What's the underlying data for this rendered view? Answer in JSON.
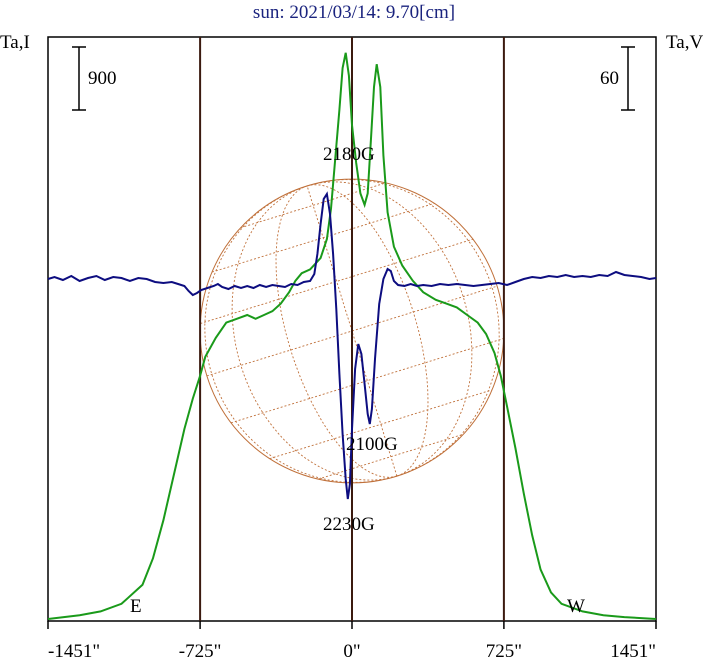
{
  "chart_data": {
    "type": "line",
    "title": "sun: 2021/03/14: 9.70[cm]",
    "left_axis_label": "Ta,I",
    "right_axis_label": "Ta,V",
    "left_scale_bar_value": "900",
    "right_scale_bar_value": "60",
    "x_tick_labels": [
      "-1451\"",
      "-725\"",
      "0\"",
      "725\"",
      "1451\""
    ],
    "x_ticks": [
      -1451,
      -725,
      0,
      725,
      1451
    ],
    "xlim": [
      -1451,
      1451
    ],
    "limb_positions": [
      -725,
      725
    ],
    "limb_labels": {
      "east": "E",
      "west": "W"
    },
    "annotations": [
      {
        "text": "2180G",
        "x": -15,
        "y_frac": 0.85
      },
      {
        "text": "2100G",
        "x": 95,
        "y_frac": 0.3
      },
      {
        "text": "2230G",
        "x": -15,
        "y_frac": 0.15
      }
    ],
    "colors": {
      "intensity": "#1a9a1a",
      "polarization": "#0d0d80",
      "limb_lines": "#3b1a0f",
      "disk_grid": "#c0713b",
      "title": "#1a237e"
    },
    "series": [
      {
        "id": "I",
        "axis": "left",
        "points": [
          [
            -1451,
            0.0
          ],
          [
            -1300,
            0.01
          ],
          [
            -1200,
            0.02
          ],
          [
            -1100,
            0.04
          ],
          [
            -1000,
            0.09
          ],
          [
            -950,
            0.16
          ],
          [
            -900,
            0.26
          ],
          [
            -850,
            0.38
          ],
          [
            -800,
            0.5
          ],
          [
            -760,
            0.58
          ],
          [
            -725,
            0.64
          ],
          [
            -700,
            0.69
          ],
          [
            -650,
            0.74
          ],
          [
            -600,
            0.78
          ],
          [
            -550,
            0.79
          ],
          [
            -500,
            0.8
          ],
          [
            -460,
            0.79
          ],
          [
            -420,
            0.8
          ],
          [
            -380,
            0.81
          ],
          [
            -340,
            0.83
          ],
          [
            -300,
            0.86
          ],
          [
            -270,
            0.89
          ],
          [
            -240,
            0.91
          ],
          [
            -200,
            0.92
          ],
          [
            -150,
            0.95
          ],
          [
            -120,
            1.0
          ],
          [
            -100,
            1.08
          ],
          [
            -80,
            1.21
          ],
          [
            -60,
            1.34
          ],
          [
            -45,
            1.45
          ],
          [
            -30,
            1.49
          ],
          [
            -15,
            1.43
          ],
          [
            0,
            1.3
          ],
          [
            20,
            1.2
          ],
          [
            40,
            1.12
          ],
          [
            60,
            1.09
          ],
          [
            75,
            1.12
          ],
          [
            90,
            1.26
          ],
          [
            105,
            1.4
          ],
          [
            118,
            1.46
          ],
          [
            135,
            1.4
          ],
          [
            150,
            1.22
          ],
          [
            170,
            1.07
          ],
          [
            200,
            0.98
          ],
          [
            240,
            0.93
          ],
          [
            290,
            0.89
          ],
          [
            340,
            0.86
          ],
          [
            400,
            0.84
          ],
          [
            450,
            0.83
          ],
          [
            500,
            0.82
          ],
          [
            550,
            0.8
          ],
          [
            600,
            0.78
          ],
          [
            640,
            0.75
          ],
          [
            680,
            0.7
          ],
          [
            710,
            0.64
          ],
          [
            740,
            0.56
          ],
          [
            780,
            0.45
          ],
          [
            820,
            0.33
          ],
          [
            860,
            0.22
          ],
          [
            900,
            0.13
          ],
          [
            950,
            0.07
          ],
          [
            1000,
            0.04
          ],
          [
            1100,
            0.02
          ],
          [
            1200,
            0.01
          ],
          [
            1300,
            0.005
          ],
          [
            1451,
            0.0
          ]
        ]
      },
      {
        "id": "V",
        "axis": "right",
        "points": [
          [
            -1451,
            0.0
          ],
          [
            -1420,
            0.02
          ],
          [
            -1380,
            -0.01
          ],
          [
            -1340,
            0.03
          ],
          [
            -1300,
            -0.02
          ],
          [
            -1260,
            0.01
          ],
          [
            -1220,
            0.03
          ],
          [
            -1180,
            -0.01
          ],
          [
            -1140,
            0.02
          ],
          [
            -1100,
            0.01
          ],
          [
            -1060,
            -0.02
          ],
          [
            -1020,
            0.01
          ],
          [
            -980,
            0.0
          ],
          [
            -940,
            -0.03
          ],
          [
            -900,
            -0.04
          ],
          [
            -860,
            -0.03
          ],
          [
            -830,
            -0.05
          ],
          [
            -800,
            -0.07
          ],
          [
            -780,
            -0.12
          ],
          [
            -760,
            -0.16
          ],
          [
            -740,
            -0.14
          ],
          [
            -720,
            -0.11
          ],
          [
            -690,
            -0.09
          ],
          [
            -660,
            -0.07
          ],
          [
            -640,
            -0.05
          ],
          [
            -620,
            -0.08
          ],
          [
            -590,
            -0.1
          ],
          [
            -560,
            -0.07
          ],
          [
            -530,
            -0.09
          ],
          [
            -500,
            -0.07
          ],
          [
            -470,
            -0.09
          ],
          [
            -440,
            -0.06
          ],
          [
            -410,
            -0.08
          ],
          [
            -380,
            -0.06
          ],
          [
            -350,
            -0.07
          ],
          [
            -320,
            -0.08
          ],
          [
            -290,
            -0.05
          ],
          [
            -260,
            -0.06
          ],
          [
            -230,
            -0.03
          ],
          [
            -200,
            -0.02
          ],
          [
            -180,
            0.05
          ],
          [
            -165,
            0.25
          ],
          [
            -150,
            0.55
          ],
          [
            -135,
            0.8
          ],
          [
            -120,
            0.85
          ],
          [
            -105,
            0.65
          ],
          [
            -90,
            0.25
          ],
          [
            -75,
            -0.3
          ],
          [
            -60,
            -0.95
          ],
          [
            -45,
            -1.55
          ],
          [
            -30,
            -2.0
          ],
          [
            -20,
            -2.2
          ],
          [
            -10,
            -2.05
          ],
          [
            0,
            -1.5
          ],
          [
            15,
            -0.9
          ],
          [
            30,
            -0.65
          ],
          [
            45,
            -0.75
          ],
          [
            60,
            -1.05
          ],
          [
            75,
            -1.35
          ],
          [
            85,
            -1.45
          ],
          [
            95,
            -1.3
          ],
          [
            110,
            -0.8
          ],
          [
            130,
            -0.25
          ],
          [
            150,
            0.0
          ],
          [
            170,
            0.1
          ],
          [
            185,
            0.08
          ],
          [
            200,
            -0.02
          ],
          [
            220,
            -0.06
          ],
          [
            250,
            -0.07
          ],
          [
            280,
            -0.05
          ],
          [
            310,
            -0.07
          ],
          [
            340,
            -0.06
          ],
          [
            380,
            -0.07
          ],
          [
            420,
            -0.05
          ],
          [
            460,
            -0.06
          ],
          [
            500,
            -0.05
          ],
          [
            540,
            -0.06
          ],
          [
            580,
            -0.07
          ],
          [
            620,
            -0.06
          ],
          [
            660,
            -0.05
          ],
          [
            700,
            -0.04
          ],
          [
            740,
            -0.06
          ],
          [
            780,
            -0.03
          ],
          [
            820,
            0.0
          ],
          [
            860,
            0.02
          ],
          [
            900,
            0.01
          ],
          [
            940,
            0.03
          ],
          [
            980,
            0.02
          ],
          [
            1020,
            0.04
          ],
          [
            1060,
            0.02
          ],
          [
            1100,
            0.03
          ],
          [
            1140,
            0.02
          ],
          [
            1180,
            0.04
          ],
          [
            1220,
            0.03
          ],
          [
            1260,
            0.07
          ],
          [
            1300,
            0.04
          ],
          [
            1340,
            0.03
          ],
          [
            1380,
            0.02
          ],
          [
            1420,
            0.0
          ],
          [
            1451,
            0.01
          ]
        ]
      }
    ],
    "grid": false
  }
}
